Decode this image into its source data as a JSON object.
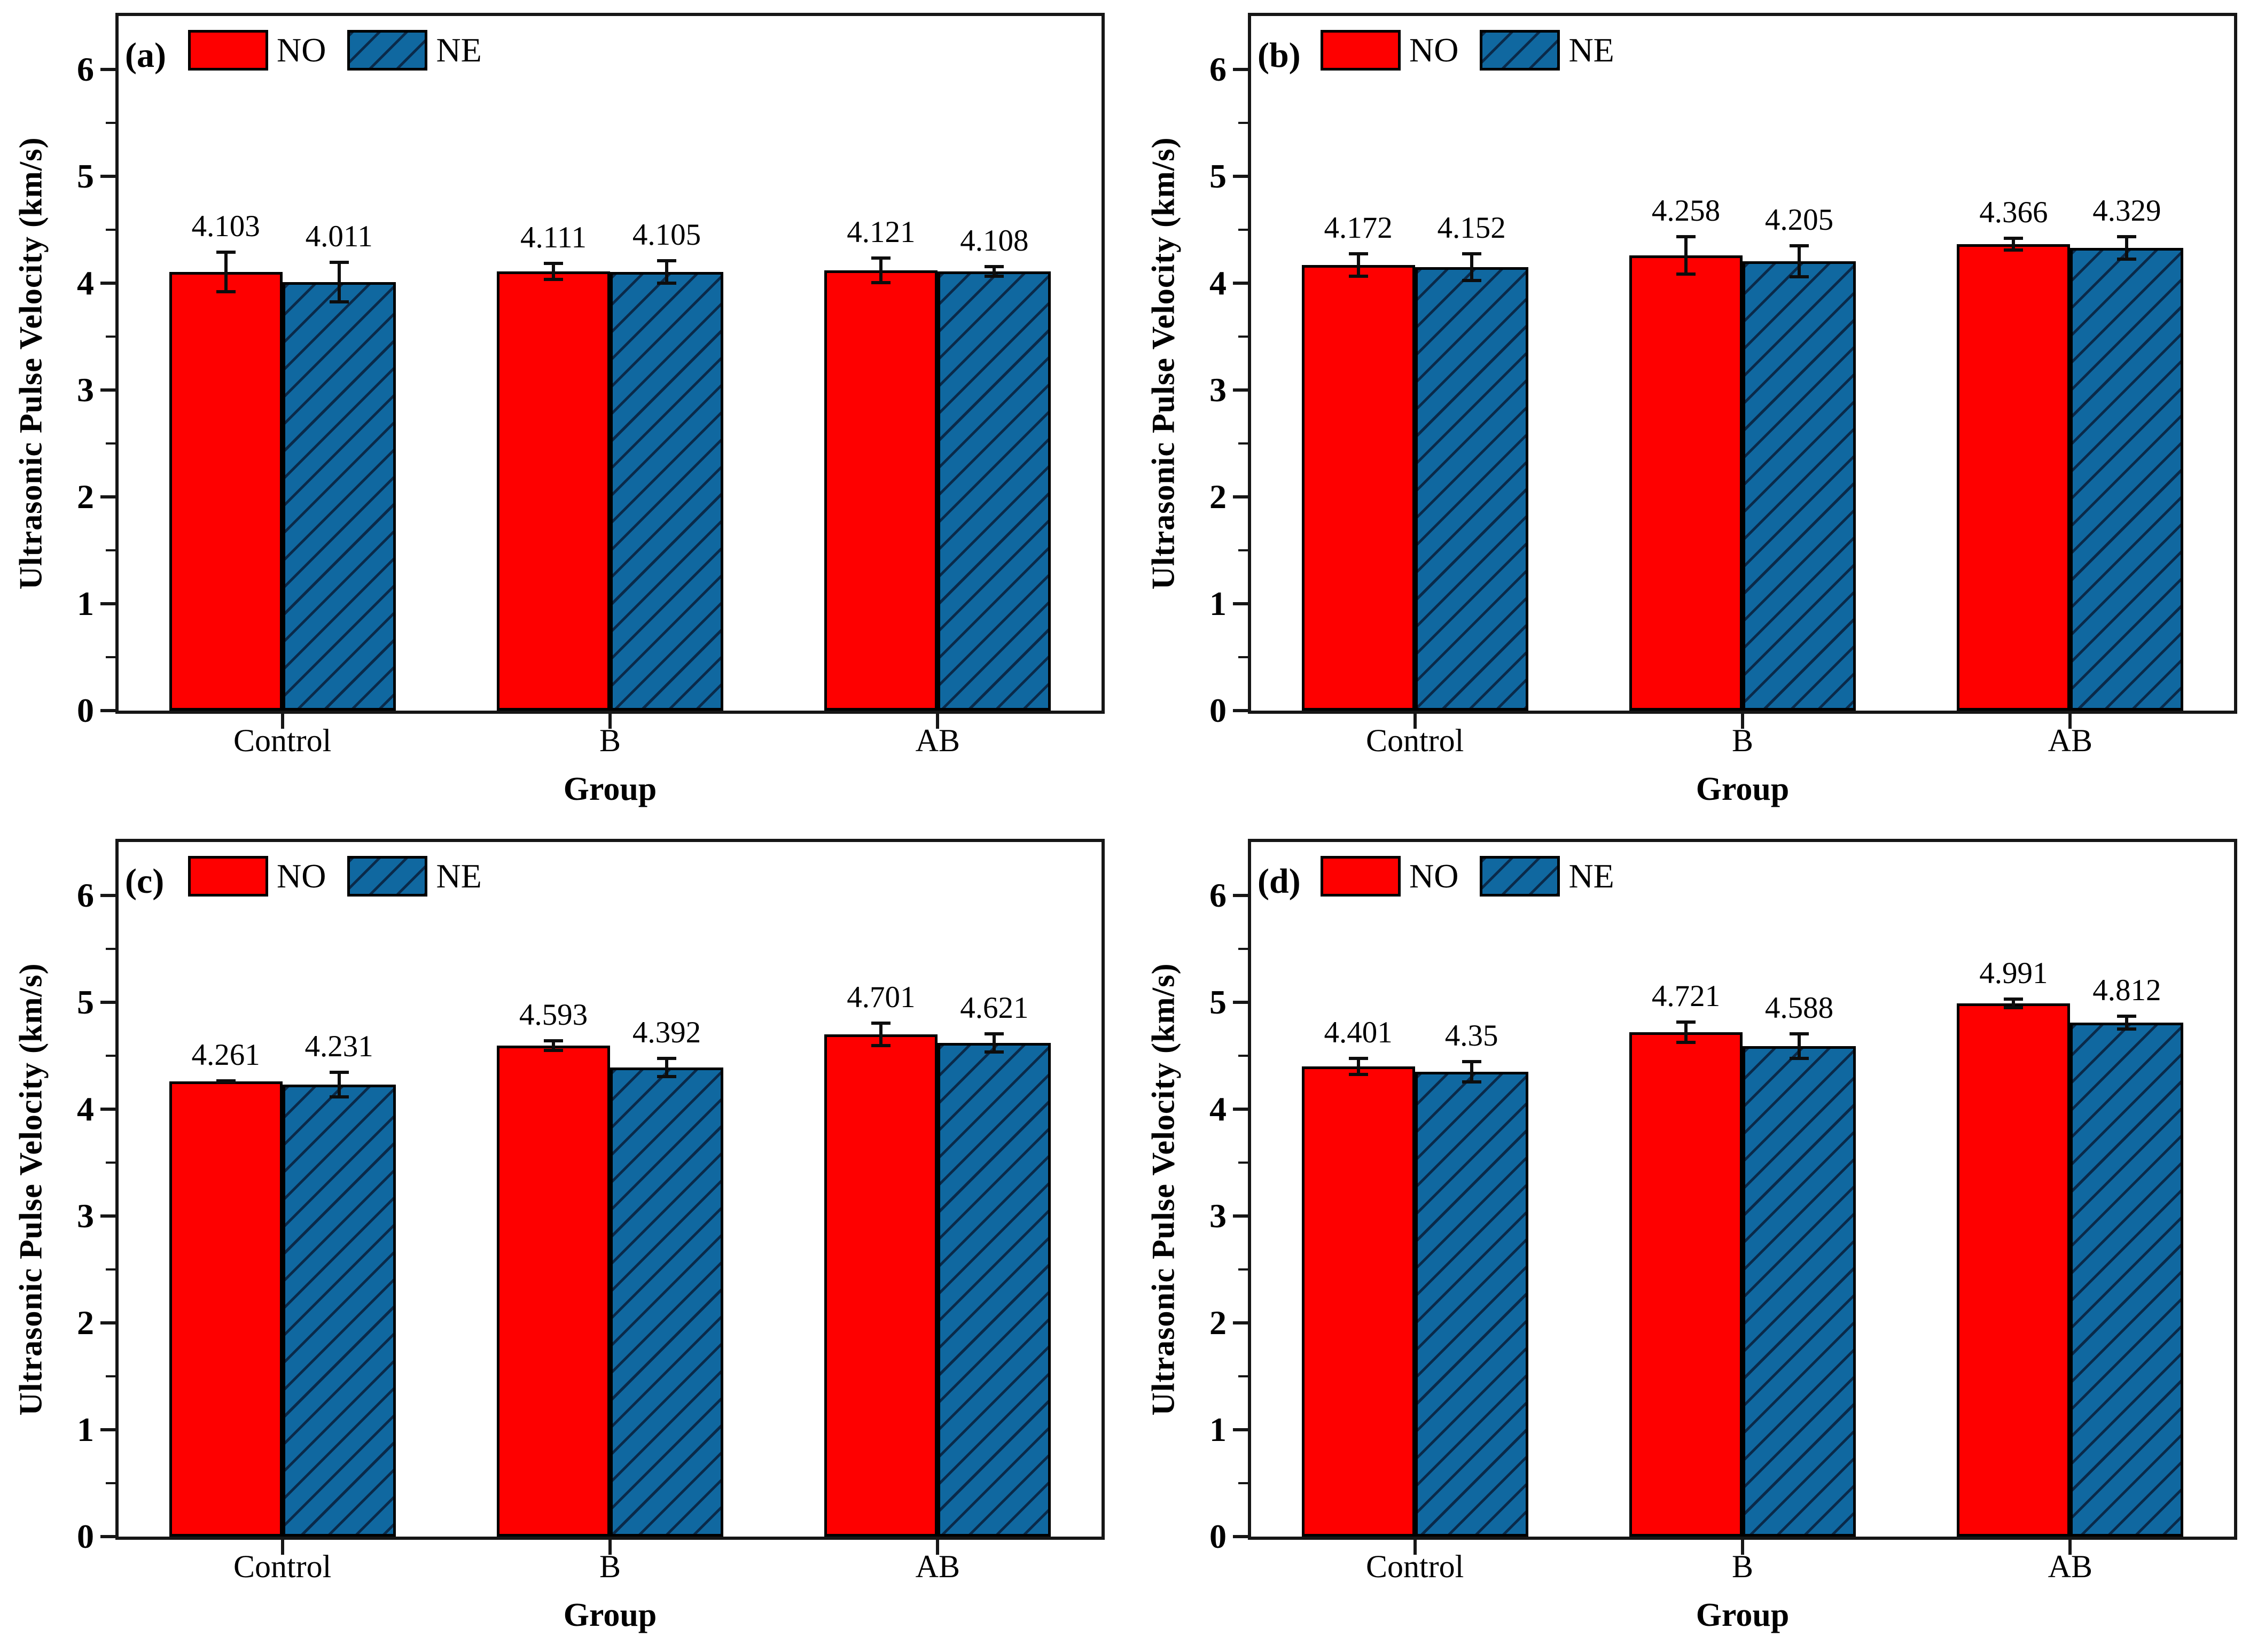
{
  "axes": {
    "ylabel": "Ultrasonic Pulse Velocity (km/s)",
    "xlabel": "Group",
    "ytick_labels": [
      "0",
      "1",
      "2",
      "3",
      "4",
      "5",
      "6"
    ],
    "ylim": [
      0,
      6.5
    ],
    "minor_tick_step": 0.5,
    "grid": "off"
  },
  "legend": {
    "position": "top-left",
    "items": [
      {
        "label": "NO",
        "style": "solid-red"
      },
      {
        "label": "NE",
        "style": "hatched-blue"
      }
    ]
  },
  "colors": {
    "no_fill": "#fe0000",
    "ne_fill": "#1068a0",
    "hatch_line": "#0a2a4a",
    "axis": "#161616",
    "text": "#000000"
  },
  "chart_data": [
    {
      "type": "bar",
      "panel_label": "(a)",
      "title": "",
      "xlabel": "Group",
      "ylabel": "Ultrasonic Pulse Velocity (km/s)",
      "ylim": [
        0,
        6.5
      ],
      "categories": [
        "Control",
        "B",
        "AB"
      ],
      "series": [
        {
          "name": "NO",
          "values": [
            4.103,
            4.111,
            4.121
          ],
          "errors": [
            0.2,
            0.09,
            0.13
          ],
          "value_labels": [
            "4.103",
            "4.111",
            "4.121"
          ]
        },
        {
          "name": "NE",
          "values": [
            4.011,
            4.105,
            4.108
          ],
          "errors": [
            0.2,
            0.12,
            0.06
          ],
          "value_labels": [
            "4.011",
            "4.105",
            "4.108"
          ]
        }
      ]
    },
    {
      "type": "bar",
      "panel_label": "(b)",
      "title": "",
      "xlabel": "Group",
      "ylabel": "Ultrasonic Pulse Velocity (km/s)",
      "ylim": [
        0,
        6.5
      ],
      "categories": [
        "Control",
        "B",
        "AB"
      ],
      "series": [
        {
          "name": "NO",
          "values": [
            4.172,
            4.258,
            4.366
          ],
          "errors": [
            0.12,
            0.19,
            0.07
          ],
          "value_labels": [
            "4.172",
            "4.258",
            "4.366"
          ]
        },
        {
          "name": "NE",
          "values": [
            4.152,
            4.205,
            4.329
          ],
          "errors": [
            0.14,
            0.16,
            0.12
          ],
          "value_labels": [
            "4.152",
            "4.205",
            "4.329"
          ]
        }
      ]
    },
    {
      "type": "bar",
      "panel_label": "(c)",
      "title": "",
      "xlabel": "Group",
      "ylabel": "Ultrasonic Pulse Velocity (km/s)",
      "ylim": [
        0,
        6.5
      ],
      "categories": [
        "Control",
        "B",
        "AB"
      ],
      "series": [
        {
          "name": "NO",
          "values": [
            4.261,
            4.593,
            4.701
          ],
          "errors": [
            0.02,
            0.06,
            0.12
          ],
          "value_labels": [
            "4.261",
            "4.593",
            "4.701"
          ]
        },
        {
          "name": "NE",
          "values": [
            4.231,
            4.392,
            4.621
          ],
          "errors": [
            0.13,
            0.1,
            0.1
          ],
          "value_labels": [
            "4.231",
            "4.392",
            "4.621"
          ]
        }
      ]
    },
    {
      "type": "bar",
      "panel_label": "(d)",
      "title": "",
      "xlabel": "Group",
      "ylabel": "Ultrasonic Pulse Velocity (km/s)",
      "ylim": [
        0,
        6.5
      ],
      "categories": [
        "Control",
        "B",
        "AB"
      ],
      "series": [
        {
          "name": "NO",
          "values": [
            4.401,
            4.721,
            4.991
          ],
          "errors": [
            0.09,
            0.11,
            0.055
          ],
          "value_labels": [
            "4.401",
            "4.721",
            "4.991"
          ]
        },
        {
          "name": "NE",
          "values": [
            4.35,
            4.588,
            4.812
          ],
          "errors": [
            0.11,
            0.13,
            0.075
          ],
          "value_labels": [
            "4.35",
            "4.588",
            "4.812"
          ]
        }
      ]
    }
  ]
}
